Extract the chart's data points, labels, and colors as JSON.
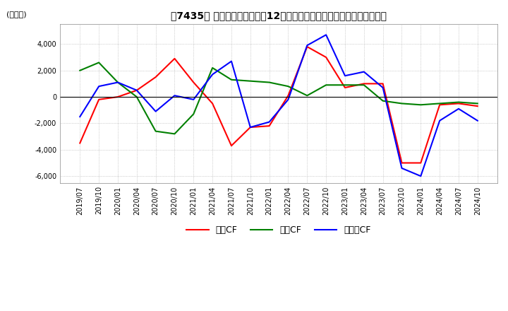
{
  "title": "　7435、キャッシュフローの12か月移動合計の対前年同期増減額の推移",
  "title_raw": "【7435】 キャッシュフローの12か月移動合計の対前年同期増減額の推移",
  "ylabel": "(百万円)",
  "ylim": [
    -6500,
    5500
  ],
  "yticks": [
    -6000,
    -4000,
    -2000,
    0,
    2000,
    4000
  ],
  "background_color": "#ffffff",
  "plot_bg_color": "#ffffff",
  "grid_color": "#aaaaaa",
  "x_labels": [
    "2019/07",
    "2019/10",
    "2020/01",
    "2020/04",
    "2020/07",
    "2020/10",
    "2021/01",
    "2021/04",
    "2021/07",
    "2021/10",
    "2022/01",
    "2022/04",
    "2022/07",
    "2022/10",
    "2023/01",
    "2023/04",
    "2023/07",
    "2023/10",
    "2024/01",
    "2024/04",
    "2024/07",
    "2024/10"
  ],
  "operating_cf": [
    -3500,
    -200,
    0,
    500,
    1500,
    2900,
    1100,
    -500,
    -3700,
    -2300,
    -2200,
    100,
    3800,
    3000,
    700,
    1000,
    1000,
    -5000,
    -5000,
    -600,
    -500,
    -700
  ],
  "investing_cf": [
    2000,
    2600,
    1100,
    0,
    -2600,
    -2800,
    -1300,
    2200,
    1300,
    1200,
    1100,
    800,
    100,
    900,
    900,
    900,
    -300,
    -500,
    -600,
    -500,
    -400,
    -500
  ],
  "free_cf": [
    -1500,
    800,
    1100,
    500,
    -1100,
    100,
    -200,
    1700,
    2700,
    -2300,
    -1900,
    -200,
    3900,
    4700,
    1600,
    1900,
    700,
    -5400,
    -6000,
    -1800,
    -900,
    -1800
  ],
  "operating_color": "#ff0000",
  "investing_color": "#008000",
  "free_color": "#0000ff",
  "legend_labels": [
    "営業CF",
    "投資CF",
    "フリーCF"
  ]
}
